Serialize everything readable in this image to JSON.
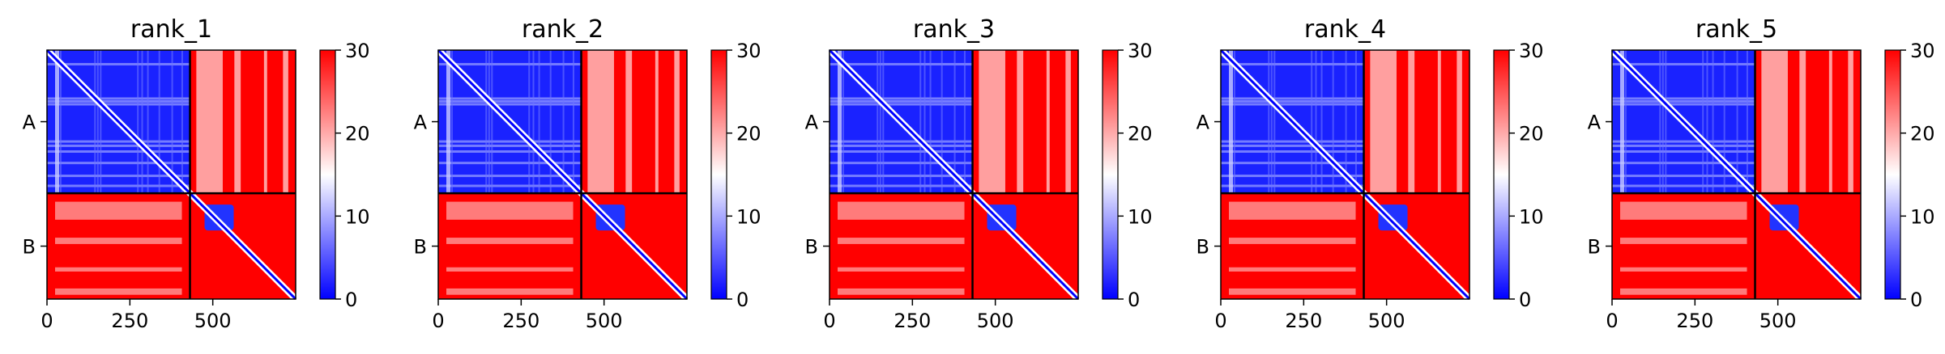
{
  "chart_data": [
    {
      "type": "heatmap",
      "title": "rank_1",
      "chains": [
        "A",
        "B"
      ],
      "xticks": [
        0,
        250,
        500
      ],
      "xlim": [
        0,
        750
      ],
      "colorbar": {
        "min": 0,
        "max": 30,
        "ticks": [
          0,
          10,
          20,
          30
        ],
        "colors": [
          "#0000ff",
          "#ffffff",
          "#ff0000"
        ]
      }
    },
    {
      "type": "heatmap",
      "title": "rank_2",
      "chains": [
        "A",
        "B"
      ],
      "xticks": [
        0,
        250,
        500
      ],
      "xlim": [
        0,
        750
      ],
      "colorbar": {
        "min": 0,
        "max": 30,
        "ticks": [
          0,
          10,
          20,
          30
        ],
        "colors": [
          "#0000ff",
          "#ffffff",
          "#ff0000"
        ]
      }
    },
    {
      "type": "heatmap",
      "title": "rank_3",
      "chains": [
        "A",
        "B"
      ],
      "xticks": [
        0,
        250,
        500
      ],
      "xlim": [
        0,
        750
      ],
      "colorbar": {
        "min": 0,
        "max": 30,
        "ticks": [
          0,
          10,
          20,
          30
        ],
        "colors": [
          "#0000ff",
          "#ffffff",
          "#ff0000"
        ]
      }
    },
    {
      "type": "heatmap",
      "title": "rank_4",
      "chains": [
        "A",
        "B"
      ],
      "xticks": [
        0,
        250,
        500
      ],
      "xlim": [
        0,
        750
      ],
      "colorbar": {
        "min": 0,
        "max": 30,
        "ticks": [
          0,
          10,
          20,
          30
        ],
        "colors": [
          "#0000ff",
          "#ffffff",
          "#ff0000"
        ]
      }
    },
    {
      "type": "heatmap",
      "title": "rank_5",
      "chains": [
        "A",
        "B"
      ],
      "xticks": [
        0,
        250,
        500
      ],
      "xlim": [
        0,
        750
      ],
      "colorbar": {
        "min": 0,
        "max": 30,
        "ticks": [
          0,
          10,
          20,
          30
        ],
        "colors": [
          "#0000ff",
          "#ffffff",
          "#ff0000"
        ]
      }
    }
  ]
}
